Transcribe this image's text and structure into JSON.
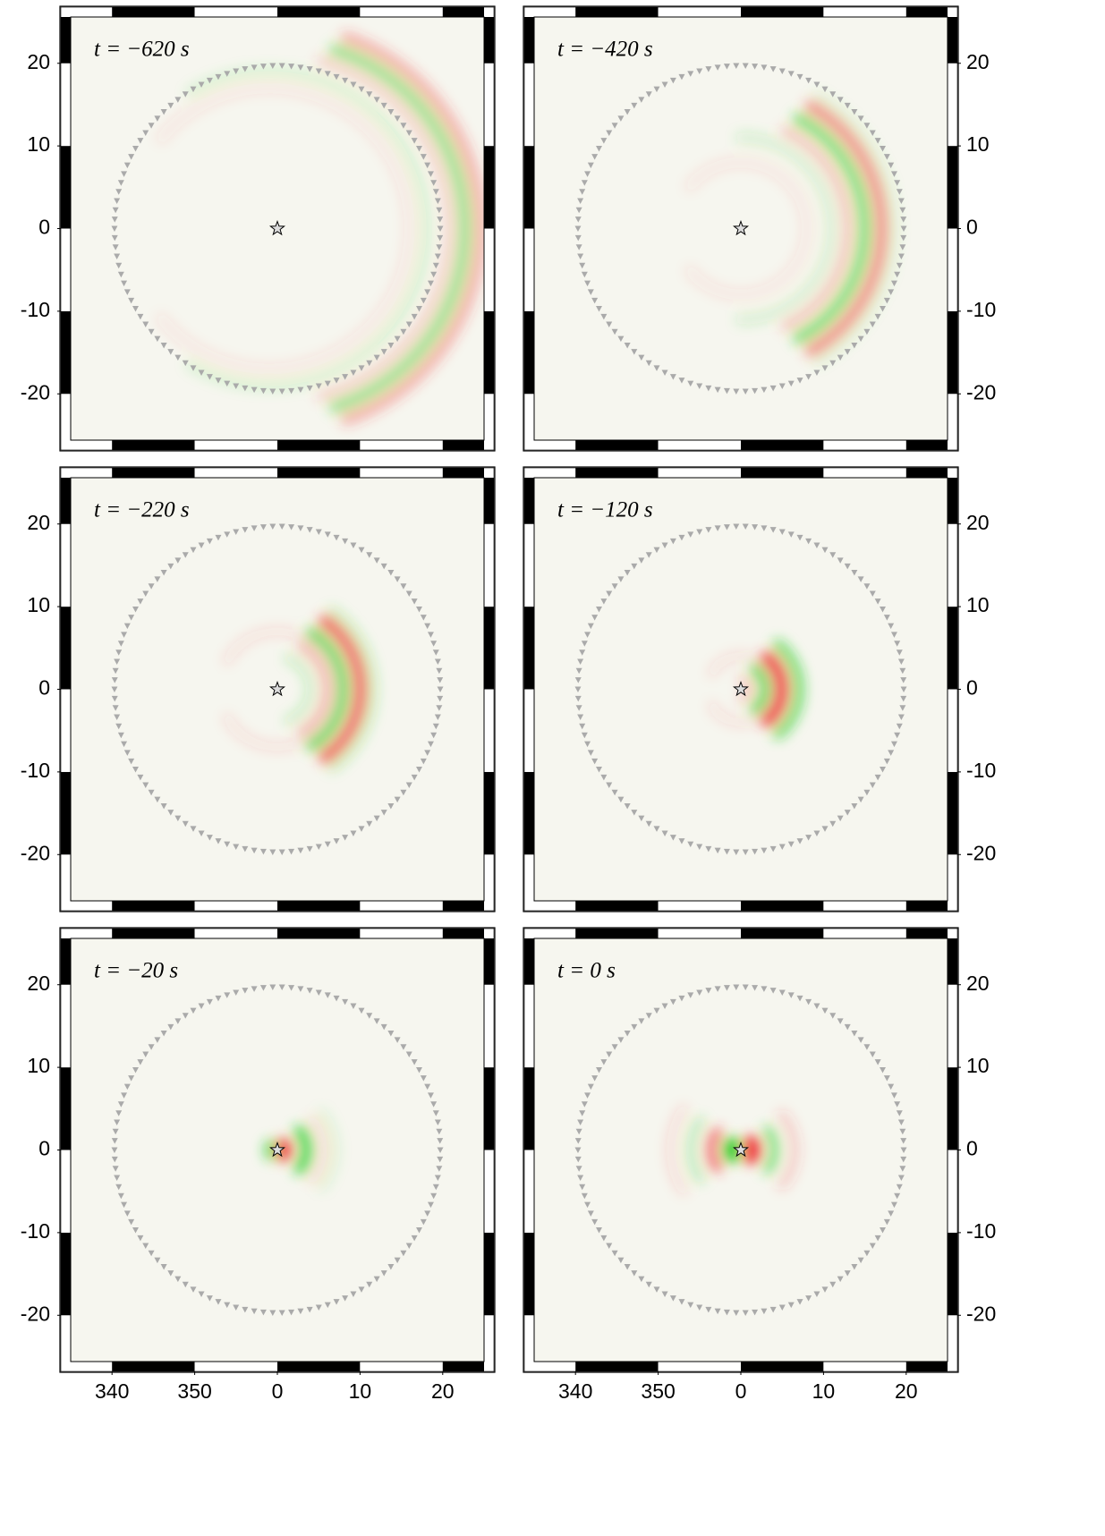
{
  "chart_data": [
    {
      "type": "map",
      "title": "t = −620 s",
      "xlim": [
        -25,
        25
      ],
      "ylim": [
        -25.6,
        25.6
      ],
      "yticks": [
        20,
        10,
        0,
        -10,
        -20
      ],
      "y_axis_side": "left"
    },
    {
      "type": "map",
      "title": "t = −420 s",
      "xlim": [
        -25,
        25
      ],
      "ylim": [
        -25.6,
        25.6
      ],
      "yticks": [
        20,
        10,
        0,
        -10,
        -20
      ],
      "y_axis_side": "right"
    },
    {
      "type": "map",
      "title": "t = −220 s",
      "xlim": [
        -25,
        25
      ],
      "ylim": [
        -25.6,
        25.6
      ],
      "yticks": [
        20,
        10,
        0,
        -10,
        -20
      ],
      "y_axis_side": "left"
    },
    {
      "type": "map",
      "title": "t = −120 s",
      "xlim": [
        -25,
        25
      ],
      "ylim": [
        -25.6,
        25.6
      ],
      "yticks": [
        20,
        10,
        0,
        -10,
        -20
      ],
      "y_axis_side": "right"
    },
    {
      "type": "map",
      "title": "t = −20 s",
      "xlim": [
        -25,
        25
      ],
      "ylim": [
        -25.6,
        25.6
      ],
      "yticks": [
        20,
        10,
        0,
        -10,
        -20
      ],
      "y_axis_side": "left",
      "xticks": [
        {
          "value": -20,
          "label": "340"
        },
        {
          "value": -10,
          "label": "350"
        },
        0,
        10,
        20
      ]
    },
    {
      "type": "map",
      "title": "t = 0 s",
      "xlim": [
        -25,
        25
      ],
      "ylim": [
        -25.6,
        25.6
      ],
      "yticks": [
        20,
        10,
        0,
        -10,
        -20
      ],
      "y_axis_side": "right",
      "xticks": [
        {
          "value": -20,
          "label": "340"
        },
        {
          "value": -10,
          "label": "350"
        },
        0,
        10,
        20
      ]
    }
  ]
}
